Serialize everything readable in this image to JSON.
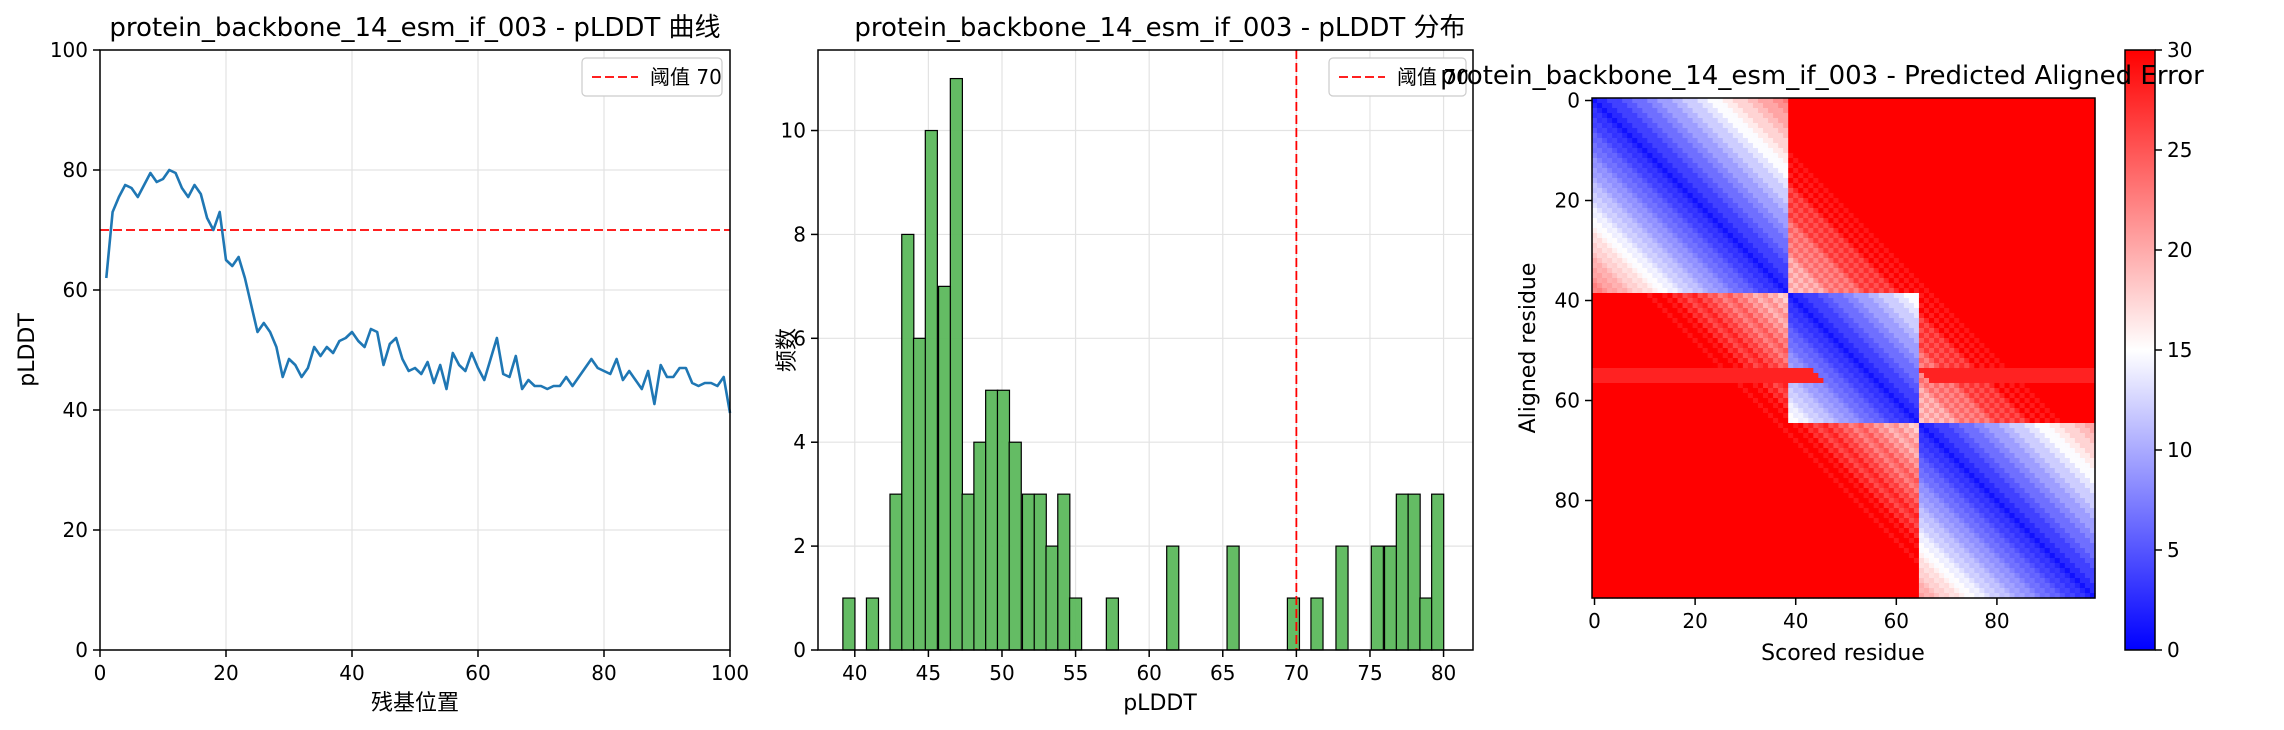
{
  "chart_data": [
    {
      "type": "line",
      "title": "protein_backbone_14_esm_if_003 - pLDDT 曲线",
      "xlabel": "残基位置",
      "ylabel": "pLDDT",
      "xlim": [
        0,
        100
      ],
      "ylim": [
        0,
        100
      ],
      "xticks": [
        "0",
        "20",
        "40",
        "60",
        "80",
        "100"
      ],
      "yticks": [
        "0",
        "20",
        "40",
        "60",
        "80",
        "100"
      ],
      "grid": true,
      "legend_position": "top-right",
      "colors": {
        "line": "#1f77b4",
        "threshold": "#ff0000"
      },
      "threshold": {
        "name": "阈值 70",
        "value": 70
      },
      "series": [
        {
          "x": [
            1,
            2,
            3,
            4,
            5,
            6,
            7,
            8,
            9,
            10,
            11,
            12,
            13,
            14,
            15,
            16,
            17,
            18,
            19,
            20,
            21,
            22,
            23,
            24,
            25,
            26,
            27,
            28,
            29,
            30,
            31,
            32,
            33,
            34,
            35,
            36,
            37,
            38,
            39,
            40,
            41,
            42,
            43,
            44,
            45,
            46,
            47,
            48,
            49,
            50,
            51,
            52,
            53,
            54,
            55,
            56,
            57,
            58,
            59,
            60,
            61,
            62,
            63,
            64,
            65,
            66,
            67,
            68,
            69,
            70,
            71,
            72,
            73,
            74,
            75,
            76,
            77,
            78,
            79,
            80,
            81,
            82,
            83,
            84,
            85,
            86,
            87,
            88,
            89,
            90,
            91,
            92,
            93,
            94,
            95,
            96,
            97,
            98,
            99,
            100
          ],
          "y": [
            62.0,
            73.0,
            75.5,
            77.5,
            77.0,
            75.5,
            77.5,
            79.5,
            78.0,
            78.5,
            80.0,
            79.5,
            77.0,
            75.5,
            77.5,
            76.0,
            72.0,
            70.0,
            73.0,
            65.0,
            64.0,
            65.5,
            62.0,
            57.5,
            53.0,
            54.5,
            53.0,
            50.5,
            45.5,
            48.5,
            47.5,
            45.5,
            47.0,
            50.5,
            49.0,
            50.5,
            49.5,
            51.5,
            52.0,
            53.0,
            51.5,
            50.5,
            53.5,
            53.0,
            47.5,
            51.0,
            52.0,
            48.5,
            46.5,
            47.0,
            46.0,
            48.0,
            44.5,
            47.5,
            43.5,
            49.5,
            47.5,
            46.5,
            49.5,
            47.0,
            45.0,
            48.5,
            52.0,
            46.0,
            45.5,
            49.0,
            43.5,
            45.0,
            44.0,
            44.0,
            43.5,
            44.0,
            44.0,
            45.5,
            44.0,
            45.5,
            47.0,
            48.5,
            47.0,
            46.5,
            46.0,
            48.5,
            45.0,
            46.5,
            45.0,
            43.5,
            46.5,
            41.0,
            47.5,
            45.5,
            45.5,
            47.0,
            47.0,
            44.5,
            44.0,
            44.5,
            44.5,
            44.0,
            45.5,
            39.5
          ]
        }
      ]
    },
    {
      "type": "bar",
      "title": "protein_backbone_14_esm_if_003 - pLDDT 分布",
      "xlabel": "pLDDT",
      "ylabel": "频数",
      "xlim": [
        37.5,
        82
      ],
      "ylim": [
        0,
        11.55
      ],
      "xticks": [
        "40",
        "45",
        "50",
        "55",
        "60",
        "65",
        "70",
        "75",
        "80"
      ],
      "yticks": [
        "0",
        "2",
        "4",
        "6",
        "8",
        "10"
      ],
      "grid": true,
      "legend_position": "top-right",
      "colors": {
        "bars": "#5cb85c",
        "edge": "#000000",
        "threshold": "#ff0000"
      },
      "threshold": {
        "name": "阈值 70",
        "value": 70
      },
      "bin_width": 0.82,
      "bins": [
        {
          "x": 39.6,
          "count": 1
        },
        {
          "x": 41.2,
          "count": 1
        },
        {
          "x": 42.8,
          "count": 3
        },
        {
          "x": 43.6,
          "count": 8
        },
        {
          "x": 44.4,
          "count": 6
        },
        {
          "x": 45.2,
          "count": 10
        },
        {
          "x": 46.1,
          "count": 7
        },
        {
          "x": 46.9,
          "count": 11
        },
        {
          "x": 47.7,
          "count": 3
        },
        {
          "x": 48.5,
          "count": 4
        },
        {
          "x": 49.3,
          "count": 5
        },
        {
          "x": 50.1,
          "count": 5
        },
        {
          "x": 50.9,
          "count": 4
        },
        {
          "x": 51.8,
          "count": 3
        },
        {
          "x": 52.6,
          "count": 3
        },
        {
          "x": 53.4,
          "count": 2
        },
        {
          "x": 54.2,
          "count": 3
        },
        {
          "x": 55.0,
          "count": 1
        },
        {
          "x": 57.5,
          "count": 1
        },
        {
          "x": 61.6,
          "count": 2
        },
        {
          "x": 65.7,
          "count": 2
        },
        {
          "x": 69.8,
          "count": 1
        },
        {
          "x": 71.4,
          "count": 1
        },
        {
          "x": 73.1,
          "count": 2
        },
        {
          "x": 75.5,
          "count": 2
        },
        {
          "x": 76.4,
          "count": 2
        },
        {
          "x": 77.2,
          "count": 3
        },
        {
          "x": 78.0,
          "count": 3
        },
        {
          "x": 78.8,
          "count": 1
        },
        {
          "x": 79.6,
          "count": 3
        }
      ]
    },
    {
      "type": "heatmap",
      "title": "protein_backbone_14_esm_if_003 - Predicted Aligned Error",
      "xlabel": "Scored residue",
      "ylabel": "Aligned residue",
      "size": 100,
      "xticks": [
        "0",
        "20",
        "40",
        "60",
        "80"
      ],
      "yticks": [
        "0",
        "20",
        "40",
        "60",
        "80"
      ],
      "colorbar_ticks": [
        "0",
        "5",
        "10",
        "15",
        "20",
        "25",
        "30"
      ],
      "colorbar_range": [
        0,
        30
      ],
      "colormap": "bwr",
      "colors": {
        "low": "#0000ff",
        "mid": "#ffffff",
        "high": "#ff0000"
      },
      "domains": [
        {
          "start": 0,
          "end": 38
        },
        {
          "start": 39,
          "end": 64
        },
        {
          "start": 65,
          "end": 99
        }
      ]
    }
  ]
}
